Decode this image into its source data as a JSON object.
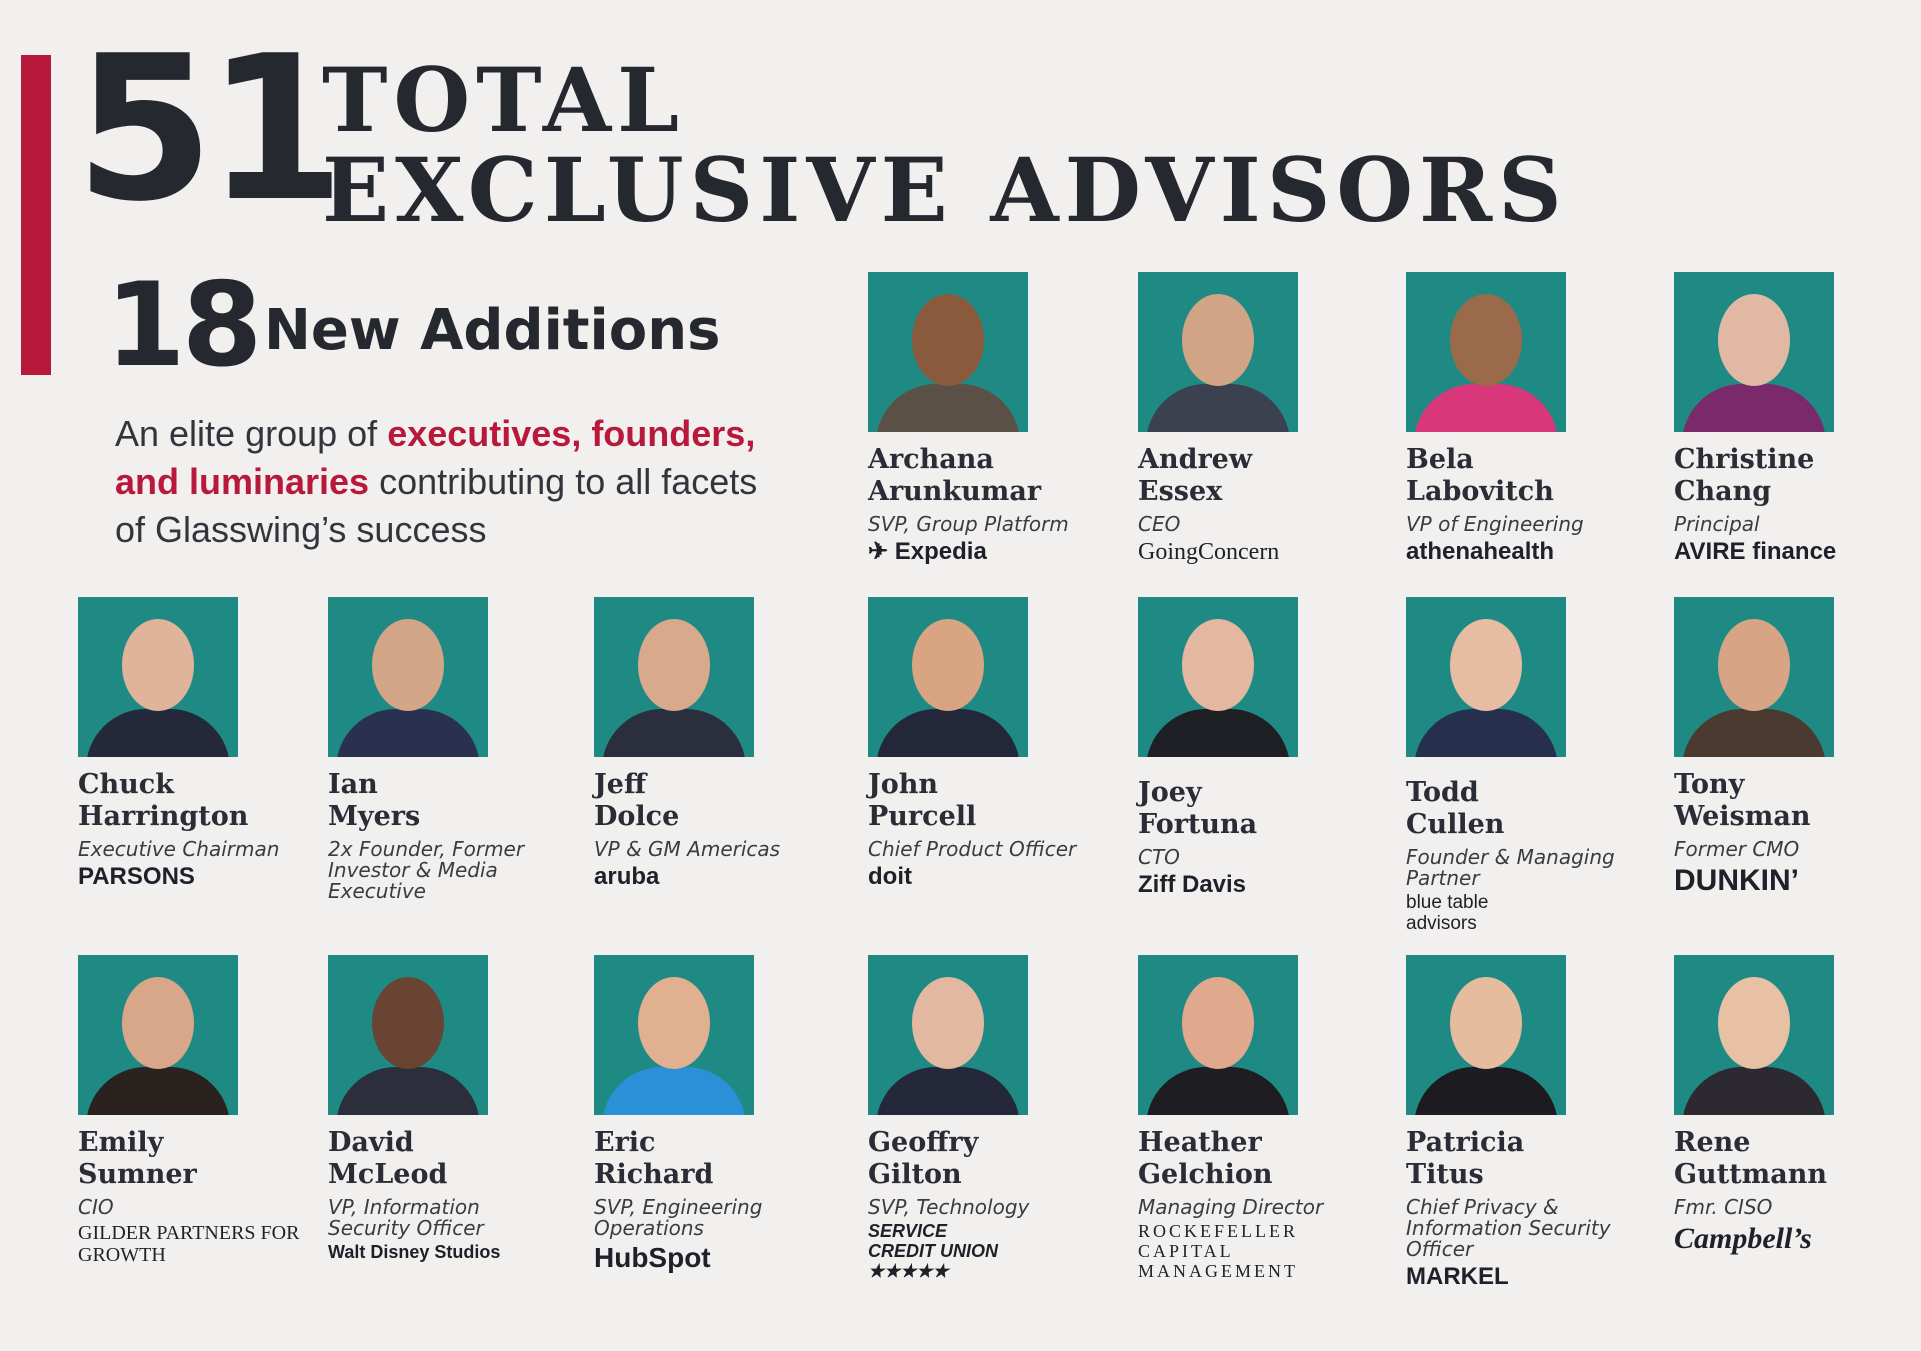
{
  "header": {
    "total_number": "51",
    "title_line1": "TOTAL",
    "title_line2": "EXCLUSIVE ADVISORS",
    "new_number": "18",
    "new_label": "New Additions",
    "tagline": {
      "part1": "An elite group of ",
      "highlight": "executives, founders, and luminaries",
      "part2": " contributing to all facets of Glasswing’s success"
    },
    "accent_color": "#b8183a",
    "photo_bg_color": "#1f8a84"
  },
  "advisors": [
    {
      "first": "Archana",
      "last": "Arunkumar",
      "role": "SVP, Group Platform",
      "logo": "✈ Expedia"
    },
    {
      "first": "Andrew",
      "last": "Essex",
      "role": "CEO",
      "logo": "GoingConcern"
    },
    {
      "first": "Bela",
      "last": "Labovitch",
      "role": "VP of Engineering",
      "logo": "athenahealth"
    },
    {
      "first": "Christine",
      "last": "Chang",
      "role": "Principal",
      "logo": "AVIRE finance"
    },
    {
      "first": "Chuck",
      "last": "Harrington",
      "role": "Executive Chairman",
      "logo": "PARSONS"
    },
    {
      "first": "Ian",
      "last": "Myers",
      "role": "2x Founder, Former Investor & Media Executive",
      "logo": ""
    },
    {
      "first": "Jeff",
      "last": "Dolce",
      "role": "VP & GM Americas",
      "logo": "aruba"
    },
    {
      "first": "John",
      "last": "Purcell",
      "role": "Chief Product Officer",
      "logo": "doit"
    },
    {
      "first": "Joey",
      "last": "Fortuna",
      "role": "CTO",
      "logo": "Ziff Davis"
    },
    {
      "first": "Todd",
      "last": "Cullen",
      "role": "Founder & Managing Partner",
      "logo": "blue table advisors"
    },
    {
      "first": "Tony",
      "last": "Weisman",
      "role": "Former CMO",
      "logo": "DUNKIN’"
    },
    {
      "first": "Emily",
      "last": "Sumner",
      "role": "CIO",
      "logo": "GILDER PARTNERS FOR GROWTH"
    },
    {
      "first": "David",
      "last": "McLeod",
      "role": "VP, Information Security Officer",
      "logo": "Walt Disney Studios"
    },
    {
      "first": "Eric",
      "last": "Richard",
      "role": "SVP, Engineering Operations",
      "logo": "HubSpot"
    },
    {
      "first": "Geoffry",
      "last": "Gilton",
      "role": "SVP, Technology",
      "logo": "SERVICE CREDIT UNION ★★★★★"
    },
    {
      "first": "Heather",
      "last": "Gelchion",
      "role": "Managing Director",
      "logo": "ROCKEFELLER CAPITAL MANAGEMENT"
    },
    {
      "first": "Patricia",
      "last": "Titus",
      "role": "Chief Privacy & Information Security Officer",
      "logo": "MARKEL"
    },
    {
      "first": "Rene",
      "last": "Guttmann",
      "role": "Fmr. CISO",
      "logo": "Campbell’s"
    }
  ]
}
